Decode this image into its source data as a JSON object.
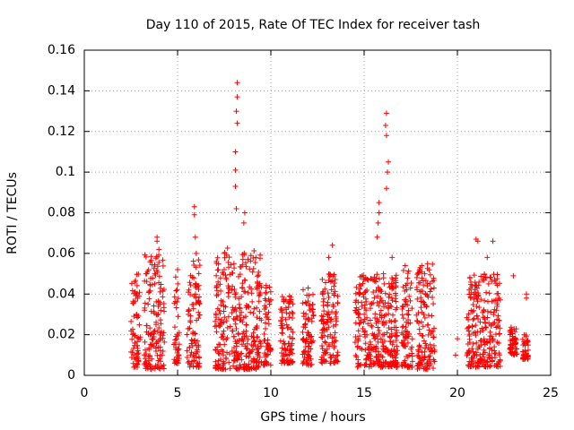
{
  "chart_data": {
    "type": "scatter",
    "title": "Day 110 of 2015, Rate Of TEC Index for receiver tash",
    "xlabel": "GPS time / hours",
    "ylabel": "ROTI / TECUs",
    "xlim": [
      0,
      25
    ],
    "ylim": [
      0,
      0.16
    ],
    "x_ticks": [
      "0",
      "5",
      "10",
      "15",
      "20",
      "25"
    ],
    "y_ticks": [
      "0",
      "0.02",
      "0.04",
      "0.06",
      "0.08",
      "0.1",
      "0.12",
      "0.14",
      "0.16"
    ],
    "grid": true,
    "marker": "+",
    "color": "#ff0000",
    "clusters": [
      {
        "x": [
          2.5,
          3.0
        ],
        "ymin": 0.004,
        "ymax": 0.05
      },
      {
        "x": [
          3.2,
          4.3
        ],
        "ymin": 0.003,
        "ymax": 0.06
      },
      {
        "x": [
          4.8,
          5.1
        ],
        "ymin": 0.006,
        "ymax": 0.05
      },
      {
        "x": [
          5.5,
          6.2
        ],
        "ymin": 0.004,
        "ymax": 0.057
      },
      {
        "x": [
          7.0,
          9.5
        ],
        "ymin": 0.003,
        "ymax": 0.063
      },
      {
        "x": [
          9.6,
          10.0
        ],
        "ymin": 0.005,
        "ymax": 0.05
      },
      {
        "x": [
          10.5,
          11.2
        ],
        "ymin": 0.006,
        "ymax": 0.039
      },
      {
        "x": [
          11.7,
          12.3
        ],
        "ymin": 0.005,
        "ymax": 0.043
      },
      {
        "x": [
          12.7,
          13.6
        ],
        "ymin": 0.006,
        "ymax": 0.05
      },
      {
        "x": [
          14.5,
          16.8
        ],
        "ymin": 0.004,
        "ymax": 0.05
      },
      {
        "x": [
          17.0,
          17.6
        ],
        "ymin": 0.004,
        "ymax": 0.052
      },
      {
        "x": [
          17.8,
          18.8
        ],
        "ymin": 0.003,
        "ymax": 0.055
      },
      {
        "x": [
          20.5,
          22.3
        ],
        "ymin": 0.004,
        "ymax": 0.05
      },
      {
        "x": [
          22.8,
          23.2
        ],
        "ymin": 0.01,
        "ymax": 0.025
      },
      {
        "x": [
          23.5,
          23.8
        ],
        "ymin": 0.008,
        "ymax": 0.02
      }
    ],
    "notable_points": [
      {
        "x": 8.2,
        "y": 0.144
      },
      {
        "x": 8.2,
        "y": 0.137
      },
      {
        "x": 8.15,
        "y": 0.13
      },
      {
        "x": 8.2,
        "y": 0.124
      },
      {
        "x": 8.1,
        "y": 0.11
      },
      {
        "x": 8.1,
        "y": 0.101
      },
      {
        "x": 8.1,
        "y": 0.093
      },
      {
        "x": 8.15,
        "y": 0.082
      },
      {
        "x": 8.6,
        "y": 0.08
      },
      {
        "x": 8.55,
        "y": 0.075
      },
      {
        "x": 16.2,
        "y": 0.129
      },
      {
        "x": 16.15,
        "y": 0.123
      },
      {
        "x": 16.2,
        "y": 0.118
      },
      {
        "x": 16.3,
        "y": 0.105
      },
      {
        "x": 16.25,
        "y": 0.1
      },
      {
        "x": 16.2,
        "y": 0.092
      },
      {
        "x": 15.8,
        "y": 0.085
      },
      {
        "x": 15.8,
        "y": 0.08
      },
      {
        "x": 15.75,
        "y": 0.075
      },
      {
        "x": 15.7,
        "y": 0.068
      },
      {
        "x": 5.9,
        "y": 0.083
      },
      {
        "x": 5.9,
        "y": 0.079
      },
      {
        "x": 5.95,
        "y": 0.068
      },
      {
        "x": 3.9,
        "y": 0.068
      },
      {
        "x": 3.9,
        "y": 0.066
      },
      {
        "x": 4.0,
        "y": 0.062
      },
      {
        "x": 13.3,
        "y": 0.064
      },
      {
        "x": 13.1,
        "y": 0.058
      },
      {
        "x": 6.0,
        "y": 0.06
      },
      {
        "x": 21.0,
        "y": 0.067
      },
      {
        "x": 21.1,
        "y": 0.066
      },
      {
        "x": 21.9,
        "y": 0.066
      },
      {
        "x": 21.6,
        "y": 0.058
      },
      {
        "x": 16.5,
        "y": 0.058
      },
      {
        "x": 7.5,
        "y": 0.052
      },
      {
        "x": 9.2,
        "y": 0.058
      },
      {
        "x": 23.0,
        "y": 0.049
      },
      {
        "x": 23.7,
        "y": 0.04
      },
      {
        "x": 23.7,
        "y": 0.038
      },
      {
        "x": 20.0,
        "y": 0.018
      },
      {
        "x": 19.9,
        "y": 0.01
      },
      {
        "x": 11.0,
        "y": 0.039
      },
      {
        "x": 17.2,
        "y": 0.054
      },
      {
        "x": 18.4,
        "y": 0.055
      },
      {
        "x": 18.0,
        "y": 0.053
      },
      {
        "x": 10.0,
        "y": 0.037
      },
      {
        "x": 12.0,
        "y": 0.043
      },
      {
        "x": 5.0,
        "y": 0.052
      }
    ]
  }
}
